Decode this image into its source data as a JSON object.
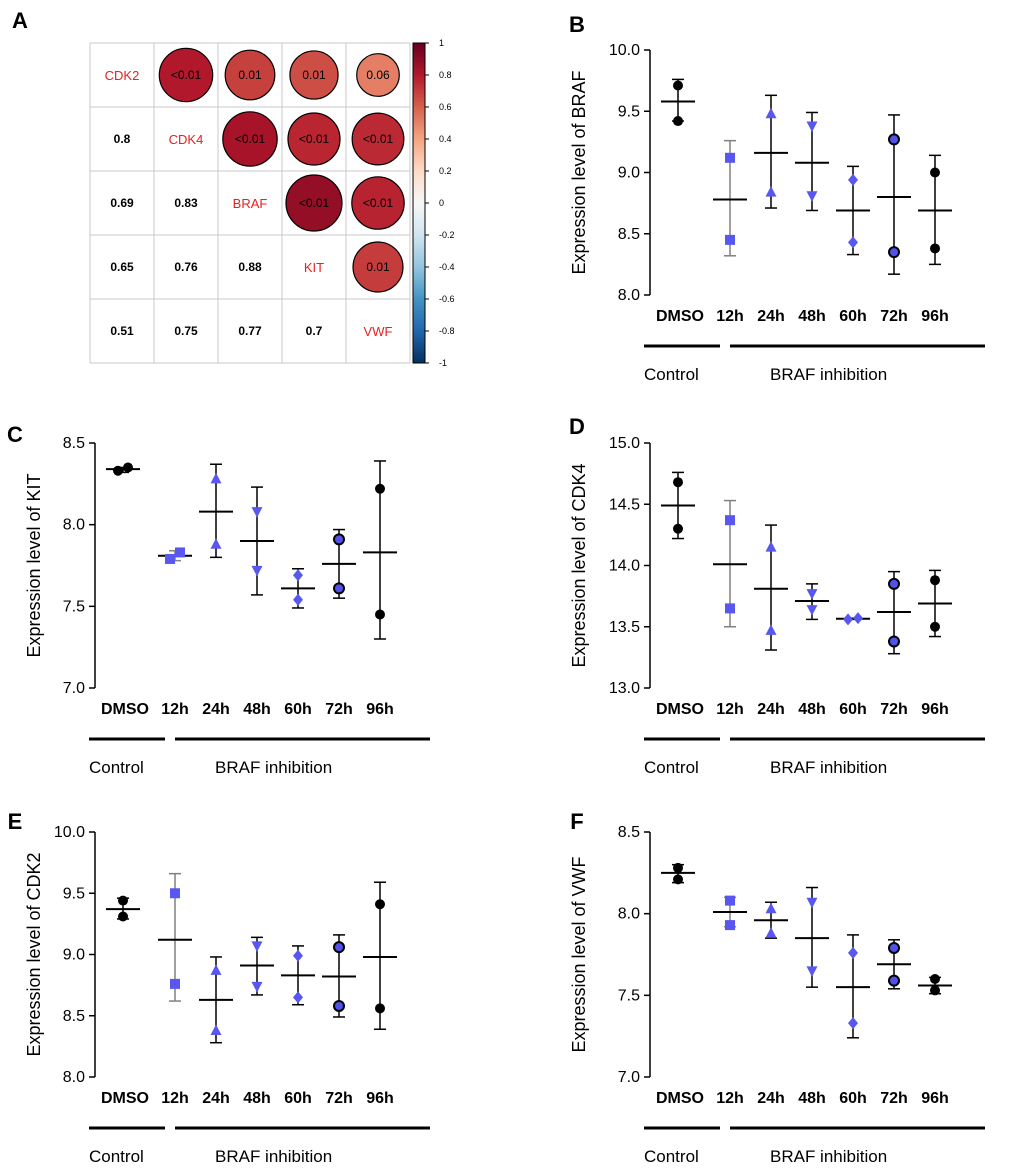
{
  "chart_data": [
    {
      "panel": "A",
      "type": "heatmap",
      "title": "",
      "variables": [
        "CDK2",
        "CDK4",
        "BRAF",
        "KIT",
        "VWF"
      ],
      "upper_triangle_p_values": [
        {
          "row": "CDK2",
          "col": "CDK4",
          "p": "<0.01",
          "r": 0.8
        },
        {
          "row": "CDK2",
          "col": "BRAF",
          "p": "0.01",
          "r": 0.69
        },
        {
          "row": "CDK2",
          "col": "KIT",
          "p": "0.01",
          "r": 0.65
        },
        {
          "row": "CDK2",
          "col": "VWF",
          "p": "0.06",
          "r": 0.51
        },
        {
          "row": "CDK4",
          "col": "BRAF",
          "p": "<0.01",
          "r": 0.83
        },
        {
          "row": "CDK4",
          "col": "KIT",
          "p": "<0.01",
          "r": 0.76
        },
        {
          "row": "CDK4",
          "col": "VWF",
          "p": "<0.01",
          "r": 0.75
        },
        {
          "row": "BRAF",
          "col": "KIT",
          "p": "<0.01",
          "r": 0.88
        },
        {
          "row": "BRAF",
          "col": "VWF",
          "p": "<0.01",
          "r": 0.77
        },
        {
          "row": "KIT",
          "col": "VWF",
          "p": "0.01",
          "r": 0.7
        }
      ],
      "lower_triangle_labels": [
        [
          "",
          "",
          "",
          "",
          ""
        ],
        [
          "0.8",
          "",
          "",
          "",
          ""
        ],
        [
          "0.69",
          "0.83",
          "",
          "",
          ""
        ],
        [
          "0.65",
          "0.76",
          "0.88",
          "",
          ""
        ],
        [
          "0.51",
          "0.75",
          "0.77",
          "0.7",
          ""
        ]
      ],
      "colorbar": {
        "range": [
          -1,
          1
        ],
        "ticks": [
          "1",
          "0.8",
          "0.6",
          "0.4",
          "0.2",
          "0",
          "-0.2",
          "-0.4",
          "-0.6",
          "-0.8",
          "-1"
        ],
        "colors": [
          "#053061",
          "#2166ac",
          "#4393c3",
          "#92c5de",
          "#d1e5f0",
          "#f7f7f7",
          "#fddbc7",
          "#f4a582",
          "#d6604d",
          "#b2182b",
          "#67001f"
        ]
      }
    },
    {
      "panel": "B",
      "type": "scatter",
      "ylabel": "Expression  level of BRAF",
      "ylim": [
        8.0,
        10.0
      ],
      "yticks": [
        "8.0",
        "8.5",
        "9.0",
        "9.5",
        "10.0"
      ],
      "categories": [
        "DMSO",
        "12h",
        "24h",
        "48h",
        "60h",
        "72h",
        "96h"
      ],
      "groups": [
        {
          "label": "Control",
          "from": 0,
          "to": 0
        },
        {
          "label": "BRAF inhibition",
          "from": 1,
          "to": 6
        }
      ],
      "series": [
        {
          "points": [
            9.71,
            9.42
          ],
          "mean": 9.58,
          "upper": 9.76,
          "lower": 9.42
        },
        {
          "points": [
            9.12,
            8.45
          ],
          "mean": 8.78,
          "upper": 9.26,
          "lower": 8.32
        },
        {
          "points": [
            9.48,
            8.84
          ],
          "mean": 9.16,
          "upper": 9.63,
          "lower": 8.71
        },
        {
          "points": [
            9.38,
            8.81
          ],
          "mean": 9.08,
          "upper": 9.49,
          "lower": 8.69
        },
        {
          "points": [
            8.94,
            8.43
          ],
          "mean": 8.69,
          "upper": 9.05,
          "lower": 8.33
        },
        {
          "points": [
            9.27,
            8.35
          ],
          "mean": 8.8,
          "upper": 9.47,
          "lower": 8.17
        },
        {
          "points": [
            9.0,
            8.38
          ],
          "mean": 8.69,
          "upper": 9.14,
          "lower": 8.25
        }
      ]
    },
    {
      "panel": "C",
      "type": "scatter",
      "ylabel": "Expression  level of KIT",
      "ylim": [
        7.0,
        8.5
      ],
      "yticks": [
        "7.0",
        "7.5",
        "8.0",
        "8.5"
      ],
      "categories": [
        "DMSO",
        "12h",
        "24h",
        "48h",
        "60h",
        "72h",
        "96h"
      ],
      "groups": [
        {
          "label": "Control",
          "from": 0,
          "to": 0
        },
        {
          "label": "BRAF inhibition",
          "from": 1,
          "to": 6
        }
      ],
      "series": [
        {
          "points": [
            8.33,
            8.35
          ],
          "mean": 8.34,
          "upper": 8.35,
          "lower": 8.32
        },
        {
          "points": [
            7.79,
            7.83
          ],
          "mean": 7.81,
          "upper": 7.84,
          "lower": 7.78
        },
        {
          "points": [
            8.28,
            7.88
          ],
          "mean": 8.08,
          "upper": 8.37,
          "lower": 7.8
        },
        {
          "points": [
            8.08,
            7.72
          ],
          "mean": 7.9,
          "upper": 8.23,
          "lower": 7.57
        },
        {
          "points": [
            7.69,
            7.54
          ],
          "mean": 7.61,
          "upper": 7.73,
          "lower": 7.49
        },
        {
          "points": [
            7.91,
            7.61
          ],
          "mean": 7.76,
          "upper": 7.97,
          "lower": 7.55
        },
        {
          "points": [
            8.22,
            7.45
          ],
          "mean": 7.83,
          "upper": 8.39,
          "lower": 7.3
        }
      ]
    },
    {
      "panel": "D",
      "type": "scatter",
      "ylabel": "Expression  level of  CDK4",
      "ylim": [
        13.0,
        15.0
      ],
      "yticks": [
        "13.0",
        "13.5",
        "14.0",
        "14.5",
        "15.0"
      ],
      "categories": [
        "DMSO",
        "12h",
        "24h",
        "48h",
        "60h",
        "72h",
        "96h"
      ],
      "groups": [
        {
          "label": "Control",
          "from": 0,
          "to": 0
        },
        {
          "label": "BRAF inhibition",
          "from": 1,
          "to": 6
        }
      ],
      "series": [
        {
          "points": [
            14.68,
            14.3
          ],
          "mean": 14.49,
          "upper": 14.76,
          "lower": 14.22
        },
        {
          "points": [
            14.37,
            13.65
          ],
          "mean": 14.01,
          "upper": 14.53,
          "lower": 13.5
        },
        {
          "points": [
            14.15,
            13.47
          ],
          "mean": 13.81,
          "upper": 14.33,
          "lower": 13.31
        },
        {
          "points": [
            13.77,
            13.64
          ],
          "mean": 13.71,
          "upper": 13.85,
          "lower": 13.56
        },
        {
          "points": [
            13.56,
            13.57
          ],
          "mean": 13.565,
          "upper": 13.57,
          "lower": 13.56
        },
        {
          "points": [
            13.85,
            13.38
          ],
          "mean": 13.62,
          "upper": 13.95,
          "lower": 13.28
        },
        {
          "points": [
            13.88,
            13.5
          ],
          "mean": 13.69,
          "upper": 13.96,
          "lower": 13.42
        }
      ]
    },
    {
      "panel": "E",
      "type": "scatter",
      "ylabel": "Expression  level of  CDK2",
      "ylim": [
        8.0,
        10.0
      ],
      "yticks": [
        "8.0",
        "8.5",
        "9.0",
        "9.5",
        "10.0"
      ],
      "categories": [
        "DMSO",
        "12h",
        "24h",
        "48h",
        "60h",
        "72h",
        "96h"
      ],
      "groups": [
        {
          "label": "Control",
          "from": 0,
          "to": 0
        },
        {
          "label": "BRAF inhibition",
          "from": 1,
          "to": 6
        }
      ],
      "series": [
        {
          "points": [
            9.44,
            9.31
          ],
          "mean": 9.37,
          "upper": 9.46,
          "lower": 9.29
        },
        {
          "points": [
            9.5,
            8.76
          ],
          "mean": 9.12,
          "upper": 9.66,
          "lower": 8.62
        },
        {
          "points": [
            8.87,
            8.38
          ],
          "mean": 8.63,
          "upper": 8.98,
          "lower": 8.28
        },
        {
          "points": [
            9.07,
            8.74
          ],
          "mean": 8.91,
          "upper": 9.14,
          "lower": 8.67
        },
        {
          "points": [
            8.99,
            8.65
          ],
          "mean": 8.83,
          "upper": 9.07,
          "lower": 8.59
        },
        {
          "points": [
            9.06,
            8.58
          ],
          "mean": 8.82,
          "upper": 9.16,
          "lower": 8.49
        },
        {
          "points": [
            9.41,
            8.56
          ],
          "mean": 8.98,
          "upper": 9.59,
          "lower": 8.39
        }
      ]
    },
    {
      "panel": "F",
      "type": "scatter",
      "ylabel": "Expression  level of  VWF",
      "ylim": [
        7.0,
        8.5
      ],
      "yticks": [
        "7.0",
        "7.5",
        "8.0",
        "8.5"
      ],
      "categories": [
        "DMSO",
        "12h",
        "24h",
        "48h",
        "60h",
        "72h",
        "96h"
      ],
      "groups": [
        {
          "label": "Control",
          "from": 0,
          "to": 0
        },
        {
          "label": "BRAF inhibition",
          "from": 1,
          "to": 6
        }
      ],
      "series": [
        {
          "points": [
            8.28,
            8.21
          ],
          "mean": 8.25,
          "upper": 8.3,
          "lower": 8.19
        },
        {
          "points": [
            8.08,
            7.93
          ],
          "mean": 8.01,
          "upper": 8.1,
          "lower": 7.92
        },
        {
          "points": [
            8.03,
            7.88
          ],
          "mean": 7.96,
          "upper": 8.07,
          "lower": 7.85
        },
        {
          "points": [
            8.07,
            7.65
          ],
          "mean": 7.85,
          "upper": 8.16,
          "lower": 7.55
        },
        {
          "points": [
            7.76,
            7.33
          ],
          "mean": 7.55,
          "upper": 7.87,
          "lower": 7.24
        },
        {
          "points": [
            7.79,
            7.59
          ],
          "mean": 7.69,
          "upper": 7.84,
          "lower": 7.54
        },
        {
          "points": [
            7.6,
            7.53
          ],
          "mean": 7.56,
          "upper": 7.61,
          "lower": 7.51
        }
      ]
    }
  ],
  "styles": {
    "markers": [
      "circle-black",
      "square",
      "triangle-up",
      "triangle-down",
      "diamond",
      "circle-blue",
      "circle-black"
    ],
    "marker_blue": "#5858f0",
    "marker_black": "#000000",
    "circle_blue_fill": "#5252ea",
    "error_bar_colors": [
      "#000000",
      "#808080",
      "#000000",
      "#000000",
      "#000000",
      "#000000",
      "#000000"
    ],
    "heatmap_label_color": "#e8211c",
    "grid_color": "#c8c8c8"
  }
}
